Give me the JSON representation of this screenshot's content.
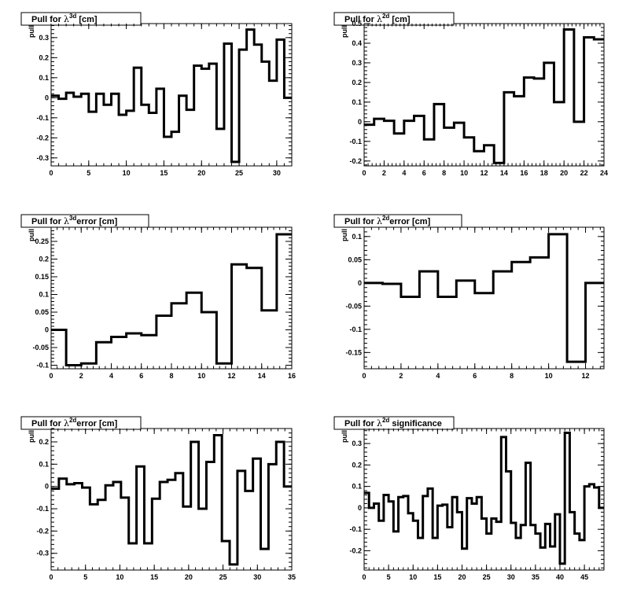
{
  "chart_data": [
    {
      "type": "step",
      "title_prefix": "Pull for ",
      "title_sup": "3d",
      "title_suffix": " [cm]",
      "ylabel": "pull",
      "xlim": [
        0,
        32
      ],
      "ylim": [
        -0.34,
        0.37
      ],
      "xticks": [
        0,
        5,
        10,
        15,
        20,
        25,
        30
      ],
      "yticks": [
        -0.3,
        -0.2,
        -0.1,
        0,
        0.1,
        0.2,
        0.3
      ],
      "yticklabels": [
        "-0.3",
        "-0.2",
        "-0.1",
        "0",
        "0.1",
        "0.2",
        "0.3"
      ],
      "values": [
        0.01,
        -0.005,
        0.025,
        0.005,
        0.02,
        -0.07,
        0.02,
        -0.035,
        0.02,
        -0.085,
        -0.065,
        0.15,
        -0.035,
        -0.075,
        0.045,
        -0.195,
        -0.17,
        0.01,
        -0.06,
        0.16,
        0.145,
        0.17,
        -0.155,
        0.27,
        -0.32,
        0.24,
        0.34,
        0.265,
        0.18,
        0.085,
        0.29,
        0.0
      ]
    },
    {
      "type": "step",
      "title_prefix": "Pull for ",
      "title_sup": "2d",
      "title_suffix": " [cm]",
      "ylabel": "pull",
      "xlim": [
        0,
        24
      ],
      "ylim": [
        -0.225,
        0.5
      ],
      "xticks": [
        0,
        2,
        4,
        6,
        8,
        10,
        12,
        14,
        16,
        18,
        20,
        22,
        24
      ],
      "yticks": [
        -0.2,
        -0.1,
        0,
        0.1,
        0.2,
        0.3,
        0.4,
        0.5
      ],
      "yticklabels": [
        "-0.2",
        "-0.1",
        "0",
        "0.1",
        "0.2",
        "0.3",
        "0.4",
        "0.5"
      ],
      "values": [
        -0.015,
        0.015,
        0.005,
        -0.06,
        0.005,
        0.03,
        -0.09,
        0.09,
        -0.03,
        -0.005,
        -0.08,
        -0.15,
        -0.12,
        -0.21,
        0.15,
        0.13,
        0.225,
        0.22,
        0.3,
        0.1,
        0.47,
        0.0,
        0.43,
        0.42
      ]
    },
    {
      "type": "step",
      "title_prefix": "Pull for ",
      "title_sup": "3d",
      "title_suffix": "error [cm]",
      "ylabel": "pull",
      "xlim": [
        0,
        16
      ],
      "ylim": [
        -0.11,
        0.29
      ],
      "xticks": [
        0,
        2,
        4,
        6,
        8,
        10,
        12,
        14,
        16
      ],
      "yticks": [
        -0.1,
        -0.05,
        0,
        0.05,
        0.1,
        0.15,
        0.2,
        0.25
      ],
      "yticklabels": [
        "-0.1",
        "-0.05",
        "0",
        "0.05",
        "0.1",
        "0.15",
        "0.2",
        "0.25"
      ],
      "values": [
        0.0,
        -0.1,
        -0.095,
        -0.035,
        -0.02,
        -0.01,
        -0.015,
        0.04,
        0.075,
        0.105,
        0.05,
        -0.095,
        0.185,
        0.175,
        0.055,
        0.27
      ]
    },
    {
      "type": "step",
      "title_prefix": "Pull for ",
      "title_sup": "2d",
      "title_suffix": "error [cm]",
      "ylabel": "pull",
      "xlim": [
        0,
        13
      ],
      "ylim": [
        -0.185,
        0.12
      ],
      "xticks": [
        0,
        2,
        4,
        6,
        8,
        10,
        12
      ],
      "yticks": [
        -0.15,
        -0.1,
        -0.05,
        0,
        0.05,
        0.1
      ],
      "yticklabels": [
        "-0.15",
        "-0.1",
        "-0.05",
        "0",
        "0.05",
        "0.1"
      ],
      "values": [
        0.0,
        -0.002,
        -0.03,
        0.025,
        -0.03,
        0.005,
        -0.022,
        0.025,
        0.045,
        0.055,
        0.105,
        -0.17,
        0.0
      ]
    },
    {
      "type": "step",
      "title_prefix": "Pull for ",
      "title_sup": "2d",
      "title_suffix": "error [cm]",
      "ylabel": "pull",
      "xlim": [
        0,
        35
      ],
      "ylim": [
        -0.375,
        0.26
      ],
      "xticks": [
        0,
        5,
        10,
        15,
        20,
        25,
        30,
        35
      ],
      "yticks": [
        -0.3,
        -0.2,
        -0.1,
        0,
        0.1,
        0.2
      ],
      "yticklabels": [
        "-0.3",
        "-0.2",
        "-0.1",
        "0",
        "0.1",
        "0.2"
      ],
      "values": [
        -0.01,
        0.035,
        0.01,
        0.015,
        -0.005,
        -0.08,
        -0.06,
        0.005,
        0.02,
        -0.05,
        -0.255,
        0.09,
        -0.255,
        -0.055,
        0.02,
        0.03,
        0.06,
        -0.09,
        0.2,
        -0.1,
        0.11,
        0.23,
        -0.245,
        -0.35,
        0.07,
        -0.02,
        0.125,
        -0.28,
        0.1,
        0.2,
        0.0
      ]
    },
    {
      "type": "step",
      "title_prefix": "Pull for ",
      "title_sup": "2d",
      "title_suffix": " significance",
      "ylabel": "pull",
      "xlim": [
        0,
        49
      ],
      "ylim": [
        -0.29,
        0.37
      ],
      "xticks": [
        0,
        5,
        10,
        15,
        20,
        25,
        30,
        35,
        40,
        45
      ],
      "yticks": [
        -0.2,
        -0.1,
        0,
        0.1,
        0.2,
        0.3
      ],
      "yticklabels": [
        "-0.2",
        "-0.1",
        "0",
        "0.1",
        "0.2",
        "0.3"
      ],
      "values": [
        0.07,
        0.0,
        0.02,
        -0.06,
        0.06,
        0.03,
        -0.11,
        0.05,
        0.055,
        -0.025,
        -0.06,
        -0.14,
        0.055,
        0.09,
        -0.14,
        0.01,
        0.015,
        -0.09,
        0.05,
        -0.02,
        -0.19,
        0.045,
        0.02,
        0.05,
        -0.05,
        -0.12,
        -0.05,
        -0.065,
        0.33,
        0.17,
        -0.07,
        -0.14,
        -0.08,
        0.21,
        -0.08,
        -0.12,
        -0.185,
        -0.075,
        -0.18,
        -0.03,
        -0.26,
        0.35,
        -0.02,
        -0.12,
        -0.15,
        0.1,
        0.11,
        0.095,
        0.0
      ]
    }
  ]
}
